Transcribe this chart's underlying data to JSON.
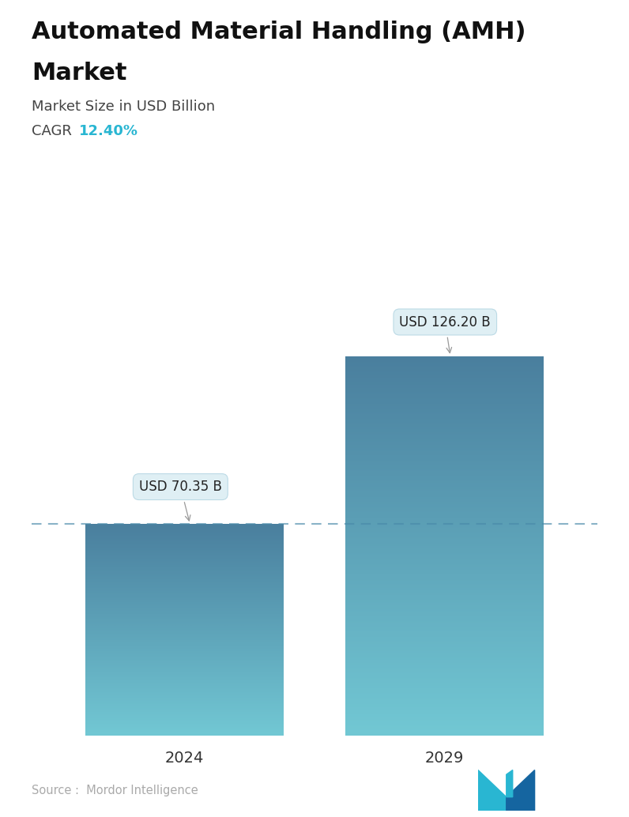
{
  "title_line1": "Automated Material Handling (AMH)",
  "title_line2": "Market",
  "subtitle": "Market Size in USD Billion",
  "cagr_label": "CAGR",
  "cagr_value": "12.40%",
  "cagr_color": "#29b6d2",
  "categories": [
    "2024",
    "2029"
  ],
  "values": [
    70.35,
    126.2
  ],
  "bar_labels": [
    "USD 70.35 B",
    "USD 126.20 B"
  ],
  "bar_color_top": "#4a7f9e",
  "bar_color_bottom": "#72c8d4",
  "dashed_line_color": "#4a8aaa",
  "dashed_line_y": 70.35,
  "label_box_color": "#ddeef4",
  "label_box_edge": "#b8d8e4",
  "label_text_color": "#222222",
  "source_text": "Source :  Mordor Intelligence",
  "source_color": "#aaaaaa",
  "background_color": "#ffffff",
  "ylim": [
    0,
    155
  ],
  "x_positions": [
    0.27,
    0.73
  ],
  "bar_width": 0.35,
  "title_fontsize": 22,
  "subtitle_fontsize": 13,
  "cagr_fontsize": 13,
  "tick_fontsize": 14,
  "label_fontsize": 12
}
